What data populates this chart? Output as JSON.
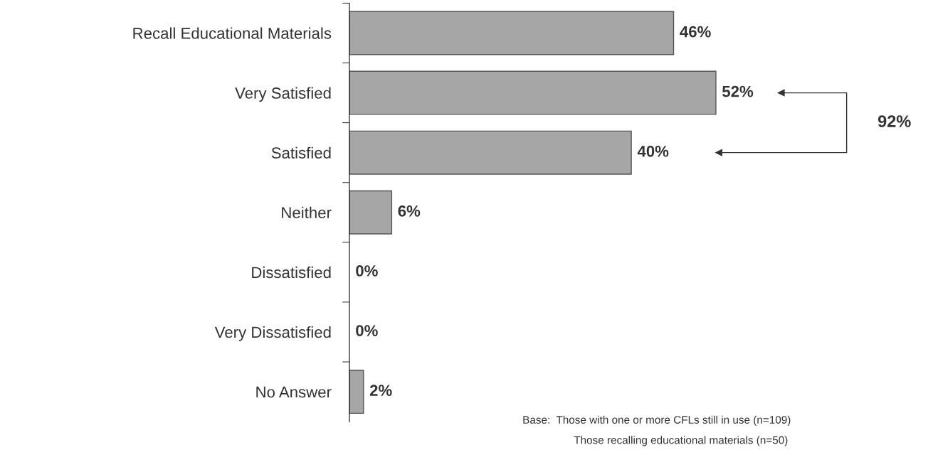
{
  "chart_data": {
    "type": "bar",
    "orientation": "horizontal",
    "categories": [
      "Recall Educational Materials",
      "Very Satisfied",
      "Satisfied",
      "Neither",
      "Dissatisfied",
      "Very Dissatisfied",
      "No Answer"
    ],
    "values": [
      46,
      52,
      40,
      6,
      0,
      0,
      2
    ],
    "value_labels": [
      "46%",
      "52%",
      "40%",
      "6%",
      "0%",
      "0%",
      "2%"
    ],
    "color": "#a6a6a6",
    "tick_labels": "y",
    "grid": false,
    "annotations": [
      "92%",
      "Base:  Those with one or more CFLs still in use (n=109)",
      "Those recalling educational materials (n=50)"
    ]
  }
}
